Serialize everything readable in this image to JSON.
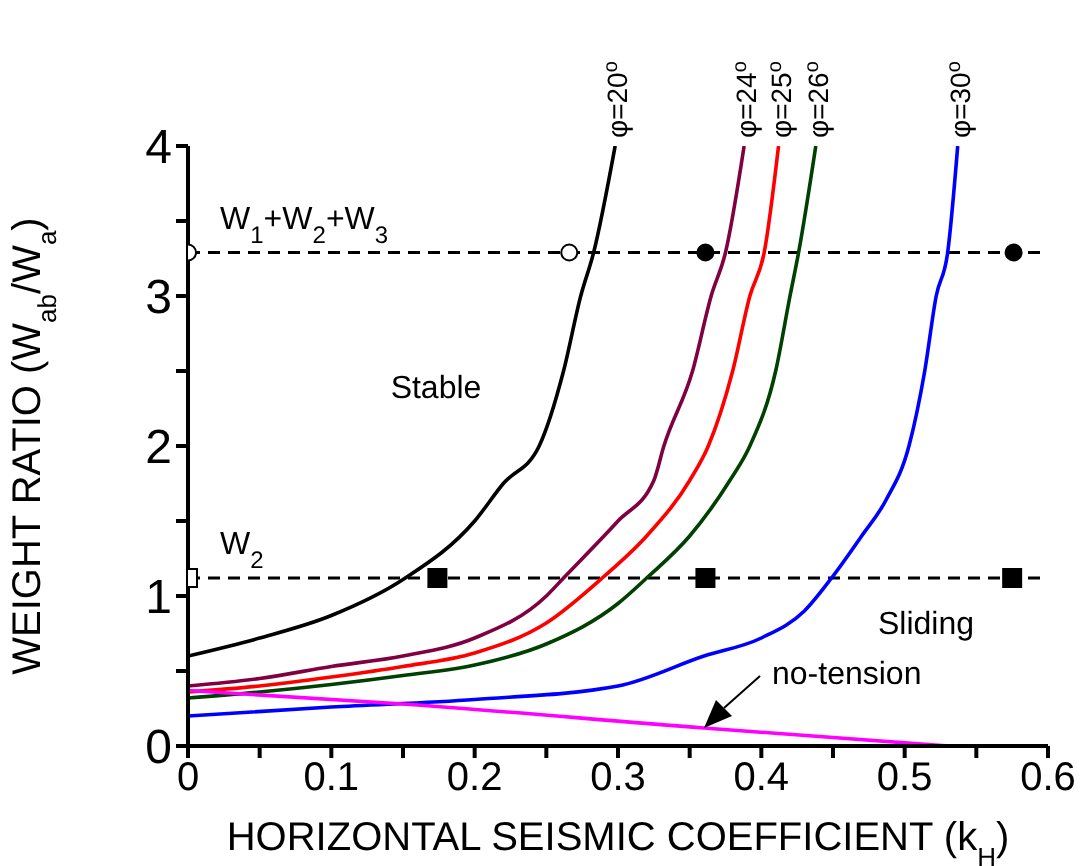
{
  "chart_data": {
    "type": "line",
    "xlabel": "HORIZONTAL SEISMIC COEFFICIENT (k$_{H}$)",
    "ylabel": "WEIGHT RATIO (W$_{ab}$/W$_{a}$)",
    "xlim": [
      0,
      0.6
    ],
    "ylim": [
      0,
      4
    ],
    "xticks": [
      0,
      {
        "value": 0.05,
        "label": null
      },
      0.1,
      {
        "value": 0.15,
        "label": null
      },
      0.2,
      {
        "value": 0.25,
        "label": null
      },
      0.3,
      {
        "value": 0.35,
        "label": null
      },
      0.4,
      {
        "value": 0.45,
        "label": null
      },
      0.5,
      {
        "value": 0.55,
        "label": null
      },
      0.6
    ],
    "yticks": [
      0,
      {
        "value": 0.5,
        "label": null
      },
      1,
      {
        "value": 1.5,
        "label": null
      },
      2,
      {
        "value": 2.5,
        "label": null
      },
      3,
      {
        "value": 3.5,
        "label": null
      },
      4
    ],
    "line_style": "solid",
    "marker": "none",
    "series": [
      {
        "name": "φ=20$^{o}$",
        "color": "#000000",
        "x": [
          0,
          0.05,
          0.1,
          0.15,
          0.2,
          0.22,
          0.245,
          0.262,
          0.274,
          0.283,
          0.298
        ],
        "values": [
          0.6,
          0.72,
          0.87,
          1.11,
          1.5,
          1.75,
          2.0,
          2.5,
          3.0,
          3.29,
          4.0
        ]
      },
      {
        "name": "φ=24$^{o}$",
        "color": "#800040",
        "x": [
          0,
          0.05,
          0.1,
          0.15,
          0.2,
          0.25,
          0.262,
          0.3,
          0.325,
          0.332,
          0.352,
          0.365,
          0.375,
          0.388
        ],
        "values": [
          0.4,
          0.45,
          0.53,
          0.6,
          0.72,
          1.0,
          1.12,
          1.5,
          1.77,
          2.0,
          2.5,
          3.0,
          3.29,
          4.0
        ]
      },
      {
        "name": "φ=25$^{o}$",
        "color": "#ff0000",
        "x": [
          0,
          0.05,
          0.1,
          0.15,
          0.2,
          0.25,
          0.289,
          0.32,
          0.35,
          0.363,
          0.38,
          0.392,
          0.402,
          0.412
        ],
        "values": [
          0.36,
          0.4,
          0.46,
          0.53,
          0.62,
          0.82,
          1.12,
          1.4,
          1.77,
          2.0,
          2.5,
          3.0,
          3.29,
          4.0
        ]
      },
      {
        "name": "φ=26$^{o}$",
        "color": "#004000",
        "x": [
          0,
          0.05,
          0.1,
          0.15,
          0.2,
          0.25,
          0.3,
          0.32,
          0.35,
          0.378,
          0.392,
          0.41,
          0.42,
          0.426,
          0.438
        ],
        "values": [
          0.32,
          0.36,
          0.41,
          0.47,
          0.54,
          0.68,
          0.95,
          1.12,
          1.4,
          1.77,
          2.0,
          2.5,
          3.0,
          3.29,
          4.0
        ]
      },
      {
        "name": "φ=30$^{o}$",
        "color": "#0000ff",
        "x": [
          0,
          0.1,
          0.2,
          0.3,
          0.36,
          0.4,
          0.43,
          0.449,
          0.47,
          0.487,
          0.503,
          0.514,
          0.522,
          0.53,
          0.537
        ],
        "values": [
          0.2,
          0.26,
          0.31,
          0.4,
          0.6,
          0.72,
          0.9,
          1.12,
          1.4,
          1.64,
          2.0,
          2.5,
          3.0,
          3.29,
          4.0
        ]
      },
      {
        "color": "#ff00ff",
        "x": [
          0,
          0.15,
          0.36,
          0.53
        ],
        "values": [
          0.37,
          0.28,
          0.12,
          0.0
        ]
      },
      {
        "type": "scatter",
        "marker": "circle",
        "color": "#ffffff",
        "x": [
          0,
          0.266
        ],
        "values": [
          3.29,
          3.29
        ]
      },
      {
        "type": "scatter",
        "marker": "circle",
        "color": "#000000",
        "x": [
          0.361,
          0.576
        ],
        "values": [
          3.29,
          3.29
        ]
      },
      {
        "type": "scatter",
        "marker": "square",
        "color": "#ffffff",
        "x": [
          0
        ],
        "values": [
          1.12
        ]
      },
      {
        "type": "scatter",
        "marker": "square",
        "color": "#000000",
        "x": [
          0.174,
          0.361,
          0.575
        ],
        "values": [
          1.12,
          1.12,
          1.12
        ]
      }
    ],
    "ref_lines": [
      {
        "axis": "y",
        "value": 3.29,
        "label": "W$_{1}$+W$_{2}$+W$_{3}$",
        "color": "#000000",
        "line_style": "dashed"
      },
      {
        "axis": "y",
        "value": 1.12,
        "label": "W$_{2}$",
        "color": "#000000",
        "line_style": "dashed"
      }
    ],
    "annotations": [
      "Stable",
      "Sliding",
      {
        "text": "no-tension",
        "x": 0.36,
        "y": 0.12
      }
    ]
  }
}
